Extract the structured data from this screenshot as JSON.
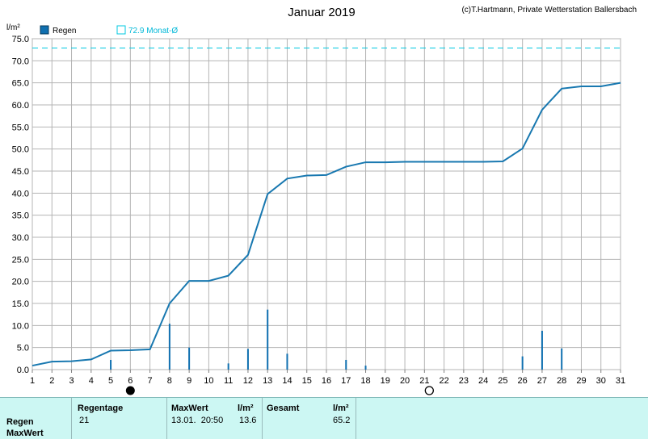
{
  "header": {
    "title": "Januar 2019",
    "credit": "(c)T.Hartmann, Private Wetterstation Ballersbach",
    "unit": "l/m²"
  },
  "legend": {
    "rain_label": "Regen",
    "avg_label": "72.9 Monat-Ø",
    "rain_color": "#1070b0",
    "avg_color": "#00c8e0"
  },
  "chart_data": {
    "type": "bar",
    "title": "Januar 2019",
    "ylabel": "l/m²",
    "ylim": [
      0,
      75
    ],
    "yticks": [
      "0.0",
      "5.0",
      "10.0",
      "15.0",
      "20.0",
      "25.0",
      "30.0",
      "35.0",
      "40.0",
      "45.0",
      "50.0",
      "55.0",
      "60.0",
      "65.0",
      "70.0",
      "75.0"
    ],
    "xticks": [
      "1",
      "2",
      "3",
      "4",
      "5",
      "6",
      "7",
      "8",
      "9",
      "10",
      "11",
      "12",
      "13",
      "14",
      "15",
      "16",
      "17",
      "18",
      "19",
      "20",
      "21",
      "22",
      "23",
      "24",
      "25",
      "26",
      "27",
      "28",
      "29",
      "30",
      "31"
    ],
    "grid": true,
    "reference_line": {
      "name": "72.9 Monat-Ø",
      "value": 72.9
    },
    "daily_bars": {
      "name": "Regen",
      "x": [
        5,
        8,
        9,
        11,
        12,
        13,
        14,
        17,
        18,
        26,
        27,
        28
      ],
      "values": [
        2.2,
        10.4,
        5.0,
        1.4,
        4.7,
        13.6,
        3.6,
        2.2,
        0.9,
        3.0,
        8.8,
        4.8
      ]
    },
    "cumulative": {
      "x": [
        1,
        2,
        3,
        4,
        5,
        6,
        7,
        8,
        9,
        10,
        11,
        12,
        13,
        14,
        15,
        16,
        17,
        18,
        19,
        20,
        21,
        22,
        23,
        24,
        25,
        26,
        27,
        28,
        29,
        30,
        31
      ],
      "values": [
        0.9,
        1.8,
        1.9,
        2.3,
        4.3,
        4.4,
        4.6,
        15.0,
        20.1,
        20.1,
        21.3,
        26.0,
        39.8,
        43.3,
        44.0,
        44.1,
        46.0,
        47.0,
        47.0,
        47.1,
        47.1,
        47.1,
        47.1,
        47.1,
        47.2,
        50.1,
        58.9,
        63.7,
        64.2,
        64.2,
        65.0
      ]
    },
    "moon_markers": {
      "new_moon_day": 6,
      "full_moon_day": 21
    }
  },
  "stats": {
    "row_labels": [
      "Regen",
      "MaxWert"
    ],
    "col_regentage": "Regentage",
    "regentage": "21",
    "col_maxwert": "MaxWert",
    "col_unit1": "l/m²",
    "maxwert_time": "13.01.  20:50",
    "maxwert_value": "13.6",
    "col_gesamt": "Gesamt",
    "col_unit2": "l/m²",
    "gesamt_value": "65.2"
  }
}
